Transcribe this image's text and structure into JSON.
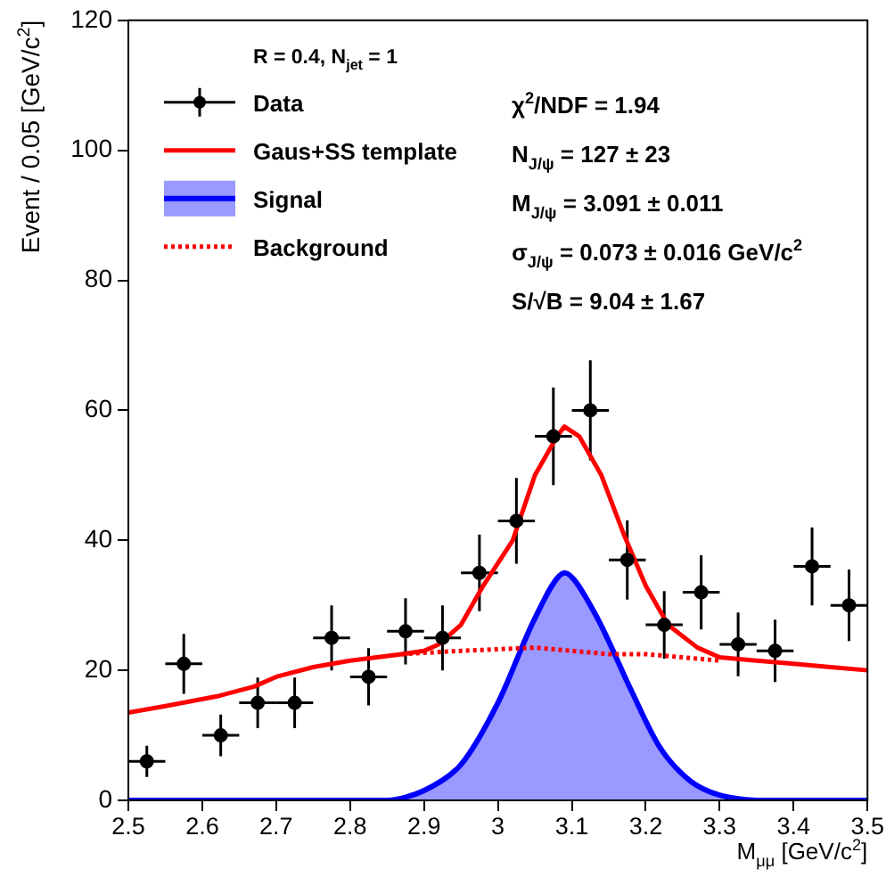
{
  "chart_data": {
    "type": "scatter",
    "legend_title": "R = 0.4, N$_{jet}$ = 1",
    "xlabel": "M$_{μμ}$ [GeV/c$^{2}$]",
    "ylabel": "Event / 0.05 [GeV/c$^{2}$]",
    "xlim": [
      2.5,
      3.5
    ],
    "xticks": [
      2.5,
      2.6,
      2.7,
      2.8,
      2.9,
      3,
      3.1,
      3.2,
      3.3,
      3.4,
      3.5
    ],
    "ylim": [
      0,
      120
    ],
    "yticks": [
      0,
      20,
      40,
      60,
      80,
      100,
      120
    ],
    "grid": false,
    "legend": "top left",
    "annotations": [
      "χ$^{2}$/NDF = 1.94",
      "N$_{J/ψ}$ = 127 ± 23",
      "M$_{J/ψ}$ = 3.091 ± 0.011",
      "σ$_{J/ψ}$ = 0.073 ± 0.016 GeV/c$^{2}$",
      "S/√B = 9.04 ± 1.67"
    ],
    "series": [
      {
        "name": "Data",
        "color": "#000000",
        "marker": "circle",
        "x": [
          2.525,
          2.575,
          2.625,
          2.675,
          2.725,
          2.775,
          2.825,
          2.875,
          2.925,
          2.975,
          3.025,
          3.075,
          3.125,
          3.175,
          3.225,
          3.275,
          3.325,
          3.375,
          3.425,
          3.475
        ],
        "values": [
          6,
          21,
          10,
          15,
          15,
          25,
          19,
          26,
          25,
          35,
          43,
          56,
          60,
          37,
          27,
          32,
          24,
          23,
          36,
          30
        ],
        "errors": [
          2.4,
          4.6,
          3.2,
          3.9,
          3.9,
          5,
          4.4,
          5.1,
          5,
          5.9,
          6.6,
          7.5,
          7.7,
          6.1,
          5.2,
          5.7,
          4.9,
          4.8,
          6,
          5.5
        ],
        "xerrors": [
          0.025,
          0.025,
          0.025,
          0.025,
          0.025,
          0.025,
          0.025,
          0.025,
          0.025,
          0.025,
          0.025,
          0.025,
          0.025,
          0.025,
          0.025,
          0.025,
          0.025,
          0.025,
          0.025,
          0.025
        ]
      },
      {
        "name": "Gaus+SS template",
        "type": "line",
        "color": "#ff0000",
        "line_style": "solid",
        "marker": "none",
        "x": [
          2.5,
          2.55,
          2.62,
          2.67,
          2.7,
          2.75,
          2.8,
          2.87,
          2.9,
          2.92,
          2.95,
          2.98,
          3.02,
          3.05,
          3.08,
          3.09,
          3.11,
          3.14,
          3.17,
          3.2,
          3.23,
          3.27,
          3.3,
          3.35,
          3.4,
          3.45,
          3.5
        ],
        "values": [
          13.5,
          14.5,
          16,
          17.5,
          19,
          20.5,
          21.5,
          22.5,
          23,
          24,
          27,
          33,
          40,
          50,
          56,
          57.5,
          56,
          50,
          41,
          33,
          27,
          23.5,
          22,
          21.5,
          21,
          20.5,
          20
        ]
      },
      {
        "name": "Signal",
        "type": "area",
        "color": "#0000ff",
        "line_style": "solid",
        "marker": "none",
        "x": [
          2.5,
          2.85,
          2.9,
          2.95,
          3,
          3.05,
          3.09,
          3.13,
          3.18,
          3.22,
          3.26,
          3.3,
          3.35,
          3.5
        ],
        "values": [
          0,
          0,
          1.5,
          5.5,
          15,
          28,
          35,
          29,
          17,
          8,
          3,
          0.8,
          0,
          0
        ]
      },
      {
        "name": "Background",
        "type": "line",
        "color": "#ff0000",
        "line_style": "dotted",
        "marker": "none",
        "x": [
          2.87,
          2.95,
          3.05,
          3.1,
          3.15,
          3.2,
          3.25,
          3.3
        ],
        "values": [
          22.5,
          23,
          23.5,
          23,
          22.5,
          22.5,
          22,
          21.5
        ]
      }
    ]
  }
}
